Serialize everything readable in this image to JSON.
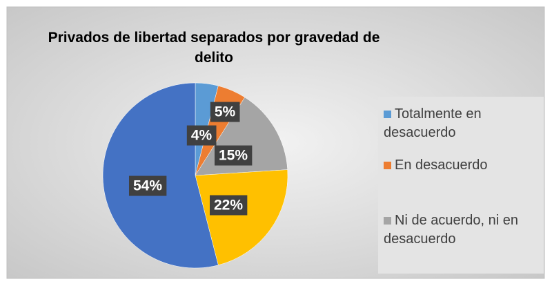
{
  "chart_data": {
    "type": "pie",
    "title": "Privados de libertad separados por gravedad de delito",
    "categories": [
      "Totalmente en desacuerdo",
      "En desacuerdo",
      "Ni de acuerdo, ni en desacuerdo",
      null,
      null
    ],
    "values": [
      4,
      5,
      15,
      22,
      54
    ],
    "value_labels": [
      "4%",
      "5%",
      "15%",
      "22%",
      "54%"
    ],
    "colors": [
      "#5b9bd5",
      "#ed7d31",
      "#a5a5a5",
      "#ffc000",
      "#4472c4"
    ],
    "legend": "right"
  }
}
